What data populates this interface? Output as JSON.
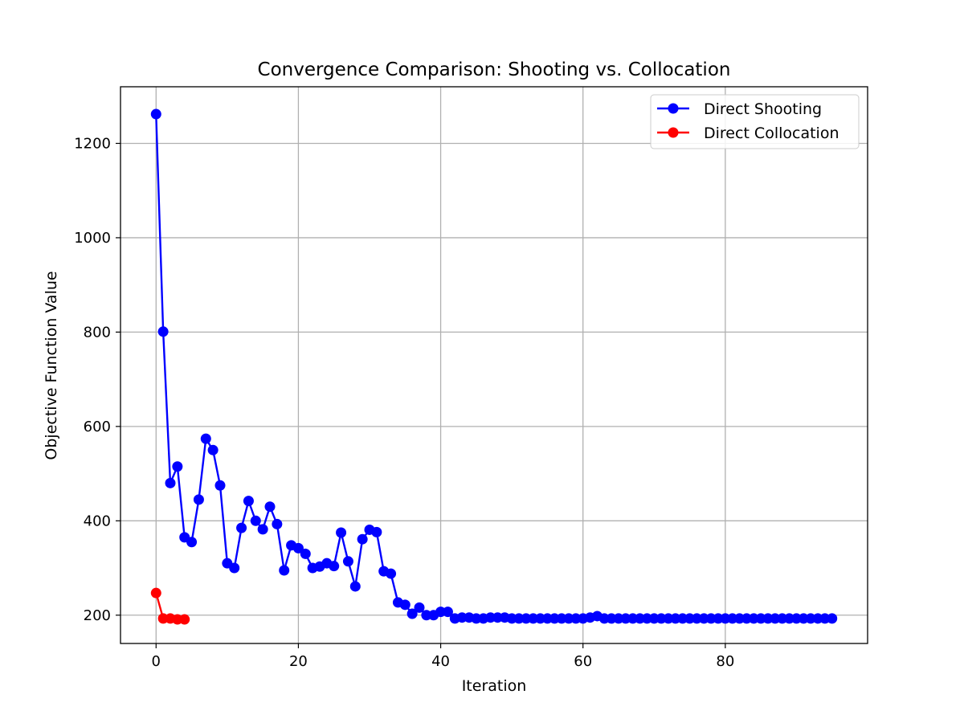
{
  "chart_data": {
    "type": "line",
    "title": "Convergence Comparison: Shooting vs. Collocation",
    "xlabel": "Iteration",
    "ylabel": "Objective Function Value",
    "xlim": [
      -5,
      100
    ],
    "ylim": [
      140,
      1320
    ],
    "xticks": [
      0,
      20,
      40,
      60,
      80
    ],
    "yticks": [
      200,
      400,
      600,
      800,
      1000,
      1200
    ],
    "grid": true,
    "legend_position": "top-right",
    "series": [
      {
        "name": "Direct Shooting",
        "color": "#0000ff",
        "x": [
          0,
          1,
          2,
          3,
          4,
          5,
          6,
          7,
          8,
          9,
          10,
          11,
          12,
          13,
          14,
          15,
          16,
          17,
          18,
          19,
          20,
          21,
          22,
          23,
          24,
          25,
          26,
          27,
          28,
          29,
          30,
          31,
          32,
          33,
          34,
          35,
          36,
          37,
          38,
          39,
          40,
          41,
          42,
          43,
          44,
          45,
          46,
          47,
          48,
          49,
          50,
          51,
          52,
          53,
          54,
          55,
          56,
          57,
          58,
          59,
          60,
          61,
          62,
          63,
          64,
          65,
          66,
          67,
          68,
          69,
          70,
          71,
          72,
          73,
          74,
          75,
          76,
          77,
          78,
          79,
          80,
          81,
          82,
          83,
          84,
          85,
          86,
          87,
          88,
          89,
          90,
          91,
          92,
          93,
          94,
          95
        ],
        "y": [
          1262,
          801,
          480,
          515,
          365,
          355,
          445,
          574,
          550,
          475,
          310,
          300,
          385,
          442,
          400,
          382,
          430,
          393,
          295,
          348,
          342,
          330,
          300,
          303,
          310,
          304,
          375,
          314,
          261,
          361,
          381,
          376,
          293,
          288,
          227,
          222,
          203,
          216,
          200,
          200,
          207,
          207,
          193,
          195,
          195,
          193,
          193,
          195,
          195,
          195,
          193,
          193,
          193,
          193,
          193,
          193,
          193,
          193,
          193,
          193,
          193,
          195,
          198,
          193,
          193,
          193,
          193,
          193,
          193,
          193,
          193,
          193,
          193,
          193,
          193,
          193,
          193,
          193,
          193,
          193,
          193,
          193,
          193,
          193,
          193,
          193,
          193,
          193,
          193,
          193,
          193,
          193,
          193,
          193,
          193,
          193
        ]
      },
      {
        "name": "Direct Collocation",
        "color": "#ff0000",
        "x": [
          0,
          1,
          2,
          3,
          4
        ],
        "y": [
          247,
          193,
          193,
          191,
          191
        ]
      }
    ]
  }
}
